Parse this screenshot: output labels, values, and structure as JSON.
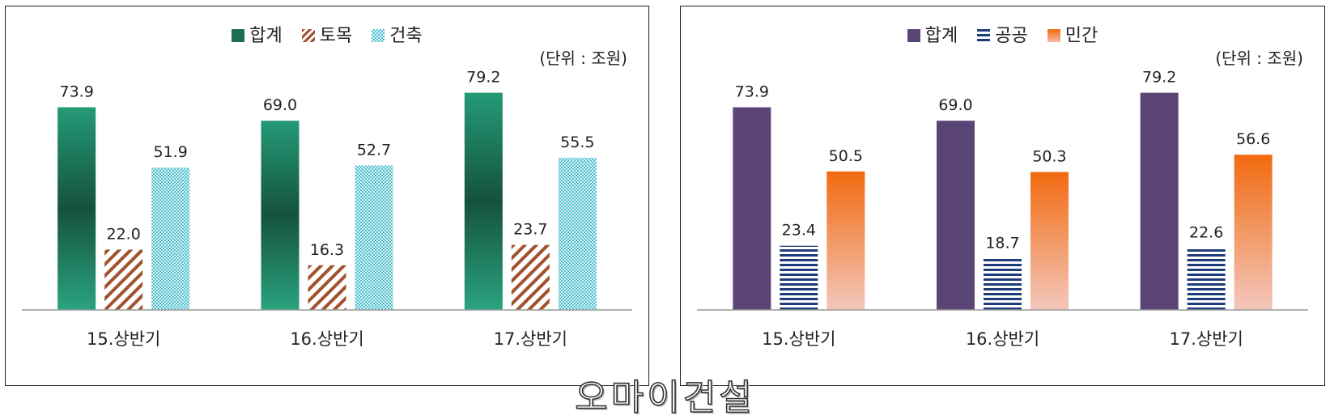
{
  "unit_label": "(단위 : 조원)",
  "watermark": "오마이건설",
  "chart_data": [
    {
      "type": "bar",
      "categories": [
        "15.상반기",
        "16.상반기",
        "17.상반기"
      ],
      "ylim": [
        0,
        90
      ],
      "grid": false,
      "legend_position": "top-center",
      "series": [
        {
          "name": "합계",
          "values": [
            73.9,
            69.0,
            79.2
          ],
          "color": "#1f7a5c",
          "style": "gradient-green"
        },
        {
          "name": "토목",
          "values": [
            22.0,
            16.3,
            23.7
          ],
          "color": "#a0522d",
          "style": "diagonal-stripes"
        },
        {
          "name": "건축",
          "values": [
            51.9,
            52.7,
            55.5
          ],
          "color": "#4fc0cf",
          "style": "checker"
        }
      ],
      "value_labels": [
        [
          "73.9",
          "69.0",
          "79.2"
        ],
        [
          "22.0",
          "16.3",
          "23.7"
        ],
        [
          "51.9",
          "52.7",
          "55.5"
        ]
      ]
    },
    {
      "type": "bar",
      "categories": [
        "15.상반기",
        "16.상반기",
        "17.상반기"
      ],
      "ylim": [
        0,
        90
      ],
      "grid": false,
      "legend_position": "top-center",
      "series": [
        {
          "name": "합계",
          "values": [
            73.9,
            69.0,
            79.2
          ],
          "color": "#5b4577",
          "style": "solid"
        },
        {
          "name": "공공",
          "values": [
            23.4,
            18.7,
            22.6
          ],
          "color": "#1f3d7a",
          "style": "horizontal-stripes"
        },
        {
          "name": "민간",
          "values": [
            50.5,
            50.3,
            56.6
          ],
          "color": "#f26a10",
          "style": "gradient-orange"
        }
      ],
      "value_labels": [
        [
          "73.9",
          "69.0",
          "79.2"
        ],
        [
          "23.4",
          "18.7",
          "22.6"
        ],
        [
          "50.5",
          "50.3",
          "56.6"
        ]
      ]
    }
  ]
}
